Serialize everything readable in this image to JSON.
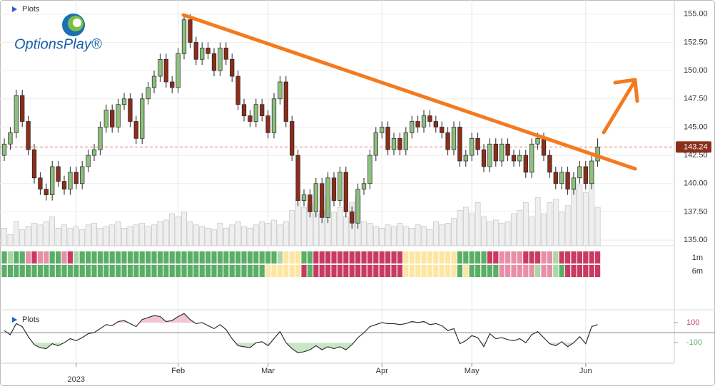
{
  "chart_data": {
    "type": "candlestick",
    "title": "Plots",
    "logo": "OptionsPlay®",
    "categories": [
      null,
      null,
      null,
      null,
      null,
      null,
      null,
      null,
      null,
      null,
      null,
      null,
      "2023",
      null,
      null,
      null,
      null,
      null,
      null,
      null,
      null,
      null,
      null,
      null,
      null,
      null,
      null,
      null,
      null,
      "Feb",
      null,
      null,
      null,
      null,
      null,
      null,
      null,
      null,
      null,
      null,
      null,
      null,
      null,
      null,
      "Mar",
      null,
      null,
      null,
      null,
      null,
      null,
      null,
      null,
      null,
      null,
      null,
      null,
      null,
      null,
      null,
      null,
      null,
      null,
      "Apr",
      null,
      null,
      null,
      null,
      null,
      null,
      null,
      null,
      null,
      null,
      null,
      null,
      null,
      null,
      "May",
      null,
      null,
      null,
      null,
      null,
      null,
      null,
      null,
      null,
      null,
      null,
      null,
      null,
      null,
      null,
      null,
      null,
      null,
      "Jun",
      null,
      null
    ],
    "open": [
      142.5,
      143.5,
      144.5,
      147.8,
      145.5,
      143.0,
      140.5,
      139.5,
      139.0,
      141.5,
      140.2,
      139.5,
      141.0,
      140.0,
      141.5,
      142.5,
      143.0,
      145.0,
      146.5,
      145.0,
      147.0,
      147.5,
      145.5,
      144.0,
      147.5,
      148.5,
      149.5,
      151.0,
      149.0,
      148.5,
      151.5,
      154.5,
      152.5,
      151.0,
      152.0,
      151.5,
      150.0,
      152.0,
      151.0,
      149.5,
      147.0,
      146.0,
      145.5,
      147.0,
      146.0,
      144.5,
      147.5,
      149.0,
      145.5,
      142.5,
      138.5,
      139.0,
      137.5,
      140.0,
      137.0,
      140.5,
      138.5,
      141.0,
      137.5,
      136.5,
      139.5,
      140.0,
      142.5,
      144.5,
      145.0,
      143.0,
      144.0,
      143.0,
      144.5,
      145.5,
      145.0,
      146.0,
      145.5,
      145.0,
      144.5,
      143.0,
      145.0,
      142.0,
      142.5,
      144.0,
      143.0,
      141.5,
      143.5,
      142.0,
      143.5,
      142.5,
      142.0,
      142.5,
      141.0,
      143.5,
      144.0,
      142.5,
      141.0,
      140.0,
      141.0,
      139.5,
      140.5,
      141.5,
      140.0,
      142.0
    ],
    "high": [
      144.0,
      145.0,
      148.3,
      148.3,
      146.0,
      143.5,
      141.0,
      140.0,
      142.0,
      142.0,
      140.7,
      141.5,
      141.5,
      142.0,
      143.0,
      143.5,
      145.5,
      147.0,
      147.0,
      147.5,
      148.0,
      148.0,
      146.0,
      148.0,
      149.0,
      150.0,
      151.5,
      151.5,
      149.5,
      152.0,
      155.0,
      155.0,
      153.0,
      152.5,
      152.5,
      152.0,
      152.5,
      152.5,
      151.5,
      150.0,
      147.5,
      146.5,
      147.5,
      147.5,
      146.5,
      148.0,
      149.5,
      149.5,
      146.0,
      143.0,
      139.5,
      139.5,
      140.5,
      140.5,
      141.0,
      141.0,
      141.5,
      141.5,
      138.0,
      140.0,
      140.5,
      143.0,
      145.0,
      145.5,
      145.5,
      144.5,
      144.5,
      145.0,
      146.0,
      146.0,
      146.5,
      146.5,
      146.0,
      145.5,
      145.0,
      145.5,
      145.5,
      143.0,
      144.5,
      144.5,
      143.5,
      144.0,
      144.0,
      144.0,
      144.0,
      143.0,
      143.0,
      143.0,
      144.0,
      144.5,
      144.5,
      143.0,
      141.5,
      141.5,
      141.5,
      141.0,
      142.0,
      142.0,
      142.5,
      144.0
    ],
    "low": [
      142.0,
      143.0,
      144.0,
      145.0,
      142.5,
      140.0,
      139.0,
      138.5,
      138.5,
      139.7,
      139.0,
      139.0,
      139.5,
      139.5,
      141.0,
      142.0,
      142.5,
      144.5,
      144.5,
      144.5,
      146.5,
      145.0,
      143.5,
      143.5,
      147.0,
      148.0,
      149.0,
      148.5,
      148.0,
      148.0,
      151.0,
      152.0,
      150.5,
      150.5,
      151.0,
      149.5,
      149.5,
      150.5,
      149.0,
      146.5,
      145.5,
      145.0,
      145.0,
      145.5,
      144.0,
      144.0,
      147.0,
      145.0,
      142.0,
      138.0,
      138.0,
      137.0,
      137.0,
      136.5,
      136.5,
      138.0,
      138.0,
      137.0,
      136.0,
      136.0,
      139.0,
      139.5,
      142.0,
      144.0,
      142.5,
      142.5,
      142.5,
      142.5,
      144.0,
      144.5,
      144.5,
      145.0,
      144.5,
      144.0,
      142.5,
      142.5,
      141.5,
      141.5,
      142.0,
      142.5,
      141.0,
      141.0,
      141.5,
      141.5,
      142.0,
      141.5,
      141.5,
      140.5,
      140.5,
      143.0,
      142.0,
      140.5,
      139.5,
      139.5,
      139.0,
      139.0,
      140.0,
      139.5,
      139.5,
      141.5
    ],
    "close": [
      143.5,
      144.5,
      147.8,
      145.5,
      143.0,
      140.5,
      139.5,
      139.0,
      141.5,
      140.2,
      139.5,
      141.0,
      140.0,
      141.5,
      142.5,
      143.0,
      145.0,
      146.5,
      145.0,
      147.0,
      147.5,
      145.5,
      144.0,
      147.5,
      148.5,
      149.5,
      151.0,
      149.0,
      148.5,
      151.5,
      154.5,
      152.5,
      151.0,
      152.0,
      151.5,
      150.0,
      152.0,
      151.0,
      149.5,
      147.0,
      146.0,
      145.5,
      147.0,
      146.0,
      144.5,
      147.5,
      149.0,
      145.5,
      142.5,
      138.5,
      139.0,
      137.5,
      140.0,
      137.0,
      140.5,
      138.5,
      141.0,
      137.5,
      136.5,
      139.5,
      140.0,
      142.5,
      144.5,
      145.0,
      143.0,
      144.0,
      143.0,
      144.5,
      145.5,
      145.0,
      146.0,
      145.5,
      145.0,
      144.5,
      143.0,
      145.0,
      142.0,
      142.5,
      144.0,
      143.0,
      141.5,
      143.5,
      142.0,
      143.5,
      142.5,
      142.0,
      142.5,
      141.0,
      143.5,
      144.0,
      142.5,
      141.0,
      140.0,
      141.0,
      139.5,
      140.5,
      141.5,
      140.0,
      142.0,
      143.24
    ],
    "up_color": "#8fbf7f",
    "down_color": "#8b2e1b",
    "last_price_color": "#8b2e1b",
    "ylim": [
      134.5,
      156.25
    ],
    "yticks": [
      {
        "value": 135,
        "label": "135.00"
      },
      {
        "value": 137.5,
        "label": "137.50"
      },
      {
        "value": 140,
        "label": "140.00"
      },
      {
        "value": 142.5,
        "label": "142.50"
      },
      {
        "value": 145,
        "label": "145.00"
      },
      {
        "value": 147.5,
        "label": "147.50"
      },
      {
        "value": 150,
        "label": "150.00"
      },
      {
        "value": 152.5,
        "label": "152.50"
      },
      {
        "value": 155,
        "label": "155.00"
      }
    ],
    "grid": true,
    "volume": [
      22,
      14,
      30,
      20,
      24,
      28,
      26,
      30,
      36,
      22,
      26,
      22,
      24,
      20,
      26,
      28,
      22,
      24,
      26,
      30,
      22,
      24,
      26,
      28,
      24,
      26,
      30,
      32,
      40,
      36,
      42,
      30,
      26,
      24,
      22,
      20,
      28,
      22,
      26,
      30,
      24,
      22,
      26,
      30,
      28,
      32,
      26,
      30,
      44,
      58,
      48,
      52,
      40,
      44,
      60,
      42,
      48,
      36,
      54,
      62,
      30,
      28,
      24,
      22,
      26,
      24,
      28,
      24,
      22,
      26,
      24,
      20,
      30,
      26,
      28,
      34,
      44,
      48,
      40,
      54,
      36,
      30,
      32,
      28,
      30,
      40,
      44,
      54,
      36,
      60,
      40,
      54,
      58,
      42,
      50,
      70,
      76,
      66,
      80,
      48
    ],
    "volume_color": "#efefef",
    "heatmap": {
      "palette": {
        "G": "#5aae66",
        "L": "#a9d7a6",
        "Y": "#fde6a2",
        "P": "#e88fa8",
        "R": "#c93a62"
      },
      "rows": [
        {
          "name": "1m",
          "cells": "GLGGPRPPGGPRLGGGGGGGGGGGGGGGGGGGGGGGGGGGGGGGGGLYYYGGRRRRRRRRRRRRRRRYYYYYYYYYGGGGGRRPPPPRRRPPLRRRRRRR"
        },
        {
          "name": "6m",
          "cells": "GGGGGGGGGGGGGGGGGGGGGGGGGGGGGGGGGGGGGGGGGGGGYYYYYYRGRRRRRRRRRRRRRRRYYYYYYYYYGYGGGGGPPPPPPLPPLGRRRRRR"
        }
      ]
    },
    "oscillator": {
      "title": "Plots",
      "values": [
        20,
        -20,
        90,
        60,
        -40,
        -120,
        -150,
        -160,
        -110,
        -130,
        -100,
        -60,
        -80,
        -50,
        -10,
        0,
        40,
        80,
        70,
        110,
        120,
        90,
        60,
        130,
        150,
        170,
        160,
        110,
        120,
        160,
        190,
        130,
        90,
        100,
        70,
        40,
        80,
        30,
        -60,
        -130,
        -140,
        -150,
        -100,
        -90,
        -130,
        -60,
        10,
        -100,
        -160,
        -200,
        -190,
        -170,
        -130,
        -170,
        -140,
        -160,
        -140,
        -170,
        -120,
        -50,
        0,
        60,
        80,
        100,
        90,
        90,
        80,
        90,
        110,
        100,
        110,
        80,
        90,
        70,
        20,
        40,
        -110,
        -80,
        -30,
        -50,
        -140,
        -10,
        -60,
        -50,
        -70,
        -80,
        -60,
        -100,
        -20,
        10,
        -50,
        -110,
        -130,
        -90,
        -140,
        -100,
        -40,
        -110,
        60,
        80
      ],
      "ylim": [
        -290,
        220
      ],
      "yticks": [
        100,
        -100
      ],
      "level_colors": [
        "#c93a62",
        "#5aae66"
      ],
      "fill_colors": [
        "#f2c6d1",
        "#c9e6c6"
      ]
    }
  }
}
